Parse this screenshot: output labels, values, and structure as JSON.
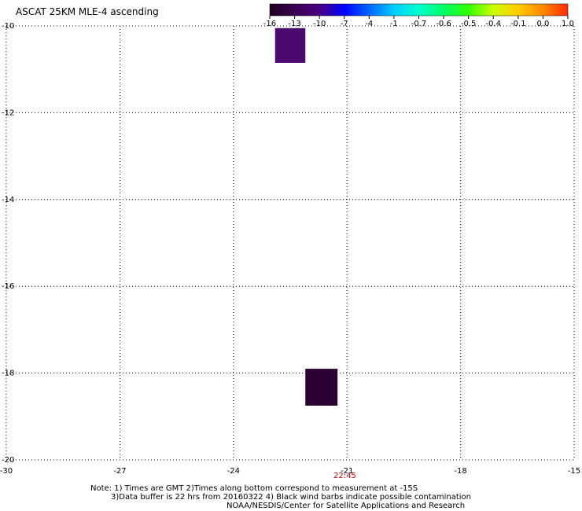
{
  "title": "ASCAT 25KM MLE-4 ascending",
  "chart_data": {
    "type": "heatmap",
    "title": "ASCAT 25KM MLE-4 ascending",
    "xlabel": "",
    "ylabel": "",
    "xlim": [
      -30,
      -15
    ],
    "ylim": [
      -20,
      -10
    ],
    "x_ticks": [
      -30,
      -27,
      -24,
      -21,
      -18,
      -15
    ],
    "y_ticks": [
      -10,
      -12,
      -14,
      -16,
      -18,
      -20
    ],
    "grid": true,
    "colorbar": {
      "labels": [
        "-16",
        "-13",
        "-10",
        "-7",
        "-4",
        "-1",
        "-0.7",
        "-0.6",
        "-0.5",
        "-0.4",
        "-0.1",
        "0.0",
        "1.0"
      ],
      "colors": [
        "#1e0020",
        "#3a004f",
        "#4b0082",
        "#0000ff",
        "#0066ff",
        "#00ccff",
        "#00ffcc",
        "#00ff66",
        "#33ff00",
        "#ccff00",
        "#ffcc00",
        "#ff8800",
        "#ff2a00"
      ]
    },
    "cells": [
      {
        "lon_min": -22.9,
        "lon_max": -22.1,
        "lat_min": -10.85,
        "lat_max": -10.05,
        "value_bin": "-13",
        "color": "#4a0a6e"
      },
      {
        "lon_min": -22.1,
        "lon_max": -21.25,
        "lat_min": -18.75,
        "lat_max": -17.9,
        "value_bin": "-16",
        "color": "#2a0030"
      }
    ]
  },
  "time_label": "22:45",
  "notes": {
    "line1": "Note: 1) Times are GMT 2)Times along bottom correspond to measurement at -15S",
    "line2": "3)Data buffer is 22 hrs from 20160322 4) Black wind barbs indicate possible contamination",
    "line3": "NOAA/NESDIS/Center for Satellite Applications and Research"
  }
}
